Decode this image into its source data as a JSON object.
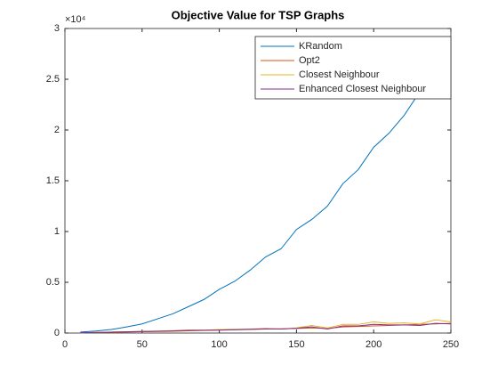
{
  "chart_data": {
    "type": "line",
    "title": "Objective Value for TSP Graphs",
    "y_exponent": "×10⁴",
    "x": [
      10,
      20,
      30,
      40,
      50,
      60,
      70,
      80,
      90,
      100,
      110,
      120,
      130,
      140,
      150,
      160,
      170,
      180,
      190,
      200,
      210,
      220,
      230,
      240,
      250
    ],
    "series": [
      {
        "name": "KRandom",
        "color": "#0072BD",
        "values": [
          0.01,
          0.02,
          0.035,
          0.06,
          0.09,
          0.14,
          0.19,
          0.26,
          0.33,
          0.43,
          0.51,
          0.62,
          0.75,
          0.83,
          1.02,
          1.12,
          1.25,
          1.47,
          1.61,
          1.83,
          1.97,
          2.15,
          2.38,
          2.55,
          2.8
        ]
      },
      {
        "name": "Opt2",
        "color": "#D95319",
        "values": [
          0.003,
          0.005,
          0.008,
          0.01,
          0.013,
          0.015,
          0.018,
          0.022,
          0.025,
          0.028,
          0.032,
          0.035,
          0.04,
          0.042,
          0.045,
          0.05,
          0.045,
          0.06,
          0.065,
          0.07,
          0.075,
          0.08,
          0.085,
          0.09,
          0.095
        ]
      },
      {
        "name": "Closest Neighbour",
        "color": "#EDB120",
        "values": [
          0.003,
          0.007,
          0.01,
          0.013,
          0.016,
          0.02,
          0.024,
          0.03,
          0.028,
          0.034,
          0.036,
          0.04,
          0.045,
          0.04,
          0.05,
          0.075,
          0.05,
          0.085,
          0.085,
          0.11,
          0.095,
          0.1,
          0.09,
          0.13,
          0.11
        ]
      },
      {
        "name": "Enhanced Closest Neighbour",
        "color": "#7E2F8E",
        "values": [
          0.003,
          0.006,
          0.009,
          0.012,
          0.015,
          0.018,
          0.021,
          0.026,
          0.027,
          0.03,
          0.033,
          0.037,
          0.042,
          0.04,
          0.047,
          0.06,
          0.04,
          0.07,
          0.07,
          0.085,
          0.08,
          0.08,
          0.075,
          0.095,
          0.09
        ]
      }
    ],
    "xlim": [
      0,
      250
    ],
    "xticks": [
      0,
      50,
      100,
      150,
      200,
      250
    ],
    "ylim": [
      0,
      3
    ],
    "yticks": [
      0,
      0.5,
      1,
      1.5,
      2,
      2.5,
      3
    ],
    "legend": "northeast"
  }
}
